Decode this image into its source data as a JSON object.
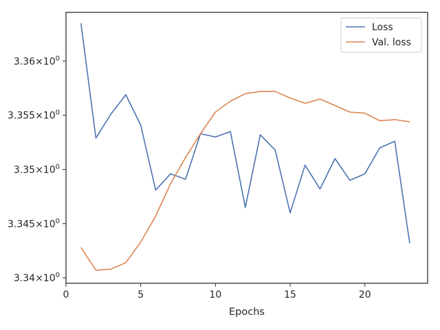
{
  "chart_data": {
    "type": "line",
    "title": "",
    "xlabel": "Epochs",
    "ylabel": "",
    "x": [
      1,
      2,
      3,
      4,
      5,
      6,
      7,
      8,
      9,
      10,
      11,
      12,
      13,
      14,
      15,
      16,
      17,
      18,
      19,
      20,
      21,
      22,
      23
    ],
    "series": [
      {
        "name": "Loss",
        "color": "#4c72b0",
        "values": [
          3.3635,
          3.3529,
          3.3551,
          3.3569,
          3.3541,
          3.3481,
          3.3496,
          3.3491,
          3.3533,
          3.353,
          3.3535,
          3.3465,
          3.3532,
          3.3518,
          3.346,
          3.3504,
          3.3482,
          3.351,
          3.349,
          3.3496,
          3.352,
          3.3526,
          3.3432
        ]
      },
      {
        "name": "Val. loss",
        "color": "#dd8452",
        "values": [
          3.3428,
          3.3407,
          3.3408,
          3.3414,
          3.3433,
          3.3457,
          3.3487,
          3.3511,
          3.3533,
          3.3553,
          3.3563,
          3.357,
          3.3572,
          3.3572,
          3.3566,
          3.3561,
          3.3565,
          3.3559,
          3.3553,
          3.3552,
          3.3545,
          3.3546,
          3.3544
        ]
      }
    ],
    "xlim": [
      0,
      24.2
    ],
    "ylim": [
      3.3395,
      3.3645
    ],
    "xticks": [
      0,
      5,
      10,
      15,
      20
    ],
    "xtick_labels": [
      "0",
      "5",
      "10",
      "15",
      "20"
    ],
    "yticks": [
      3.34,
      3.345,
      3.35,
      3.355,
      3.36
    ],
    "ytick_labels": [
      {
        "mantissa": "3.34",
        "base": "10",
        "exp": "0"
      },
      {
        "mantissa": "3.345",
        "base": "10",
        "exp": "0"
      },
      {
        "mantissa": "3.35",
        "base": "10",
        "exp": "0"
      },
      {
        "mantissa": "3.355",
        "base": "10",
        "exp": "0"
      },
      {
        "mantissa": "3.36",
        "base": "10",
        "exp": "0"
      }
    ],
    "grid": false,
    "legend_position": "top-right"
  }
}
